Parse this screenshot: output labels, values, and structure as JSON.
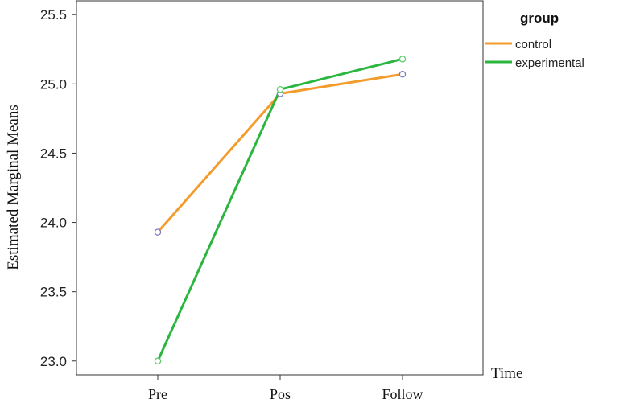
{
  "chart_data": {
    "type": "line",
    "categories": [
      "Pre",
      "Pos",
      "Follow"
    ],
    "xlabel": "Time",
    "ylabel": "Estimated Marginal Means",
    "ylim": [
      22.9,
      25.6
    ],
    "yticks": [
      "23.0",
      "23.5",
      "24.0",
      "24.5",
      "25.0",
      "25.5"
    ],
    "ytick_values": [
      23.0,
      23.5,
      24.0,
      24.5,
      25.0,
      25.5
    ],
    "grid": false,
    "legend": {
      "title": "group",
      "placement": "right-top"
    },
    "series": [
      {
        "name": "control",
        "values": [
          23.93,
          24.93,
          25.07
        ],
        "color": "#f39c2c",
        "marker_color": "#7d7dbf"
      },
      {
        "name": "experimental",
        "values": [
          23.0,
          24.96,
          25.18
        ],
        "color": "#2bb63f",
        "marker_color": "#5ccf6a"
      }
    ]
  }
}
